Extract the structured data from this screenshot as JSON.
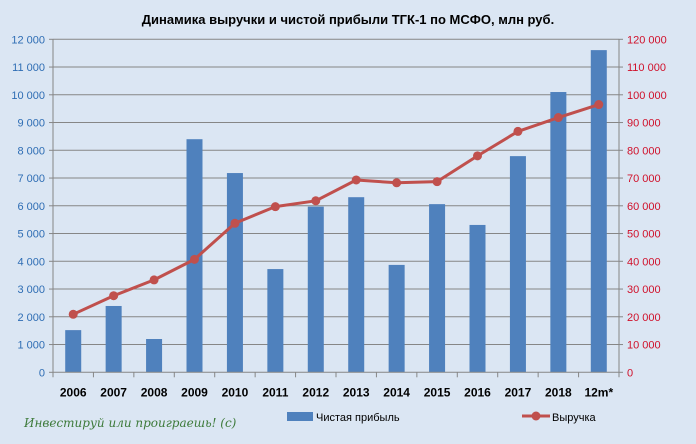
{
  "chart_data": {
    "type": "bar+line",
    "title": "Динамика выручки и чистой прибыли ТГК-1 по МСФО, млн руб.",
    "categories": [
      "2006",
      "2007",
      "2008",
      "2009",
      "2010",
      "2011",
      "2012",
      "2013",
      "2014",
      "2015",
      "2016",
      "2017",
      "2018",
      "12m*"
    ],
    "series": [
      {
        "name": "Чистая прибыль",
        "type": "bar",
        "axis": "left",
        "color": "#4f81bd",
        "values": [
          1520,
          2390,
          1200,
          8400,
          7180,
          3720,
          5970,
          6310,
          3870,
          6060,
          5310,
          7790,
          10100,
          11610
        ]
      },
      {
        "name": "Выручка",
        "type": "line",
        "axis": "right",
        "color": "#c0504d",
        "values": [
          20900,
          27600,
          33300,
          40700,
          53700,
          59700,
          61800,
          69300,
          68300,
          68700,
          78000,
          86800,
          91800,
          96500
        ]
      }
    ],
    "y_left": {
      "min": 0,
      "max": 12000,
      "step": 1000,
      "ticks": [
        "0",
        "1 000",
        "2 000",
        "3 000",
        "4 000",
        "5 000",
        "6 000",
        "7 000",
        "8 000",
        "9 000",
        "10 000",
        "11 000",
        "12 000"
      ]
    },
    "y_right": {
      "min": 0,
      "max": 120000,
      "step": 10000,
      "ticks": [
        "0",
        "10 000",
        "20 000",
        "30 000",
        "40 000",
        "50 000",
        "60 000",
        "70 000",
        "80 000",
        "90 000",
        "100 000",
        "110 000",
        "120 000"
      ]
    },
    "grid": true,
    "legend": "bottom"
  },
  "watermark": "Инвестируй или проиграешь! (с)"
}
